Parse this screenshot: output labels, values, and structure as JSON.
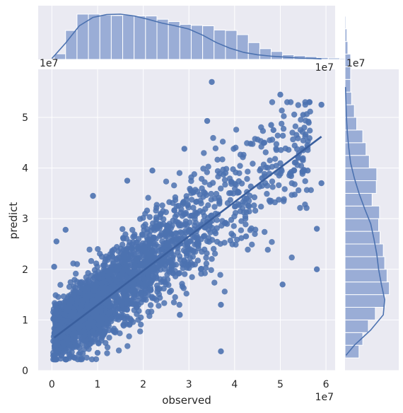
{
  "chart_data": {
    "type": "scatter",
    "subtype": "jointplot-regression",
    "xlabel": "observed",
    "ylabel": "predict",
    "x_offset_text": "1e7",
    "y_offset_text": "1e7",
    "marginal_x_offset_text": "1e7",
    "marginal_y_offset_text": "1e7",
    "xlim": [
      -0.3,
      6.2
    ],
    "ylim": [
      0,
      5.95
    ],
    "x_ticks": [
      0,
      1,
      2,
      3,
      4,
      5,
      6
    ],
    "x_tick_labels": [
      "0",
      "1",
      "2",
      "3",
      "4",
      "5",
      "6"
    ],
    "y_ticks": [
      0,
      1,
      2,
      3,
      4,
      5
    ],
    "y_tick_labels": [
      "0",
      "1",
      "2",
      "3",
      "4",
      "5"
    ],
    "grid": true,
    "colors": {
      "point": "#4c72b0",
      "background": "#eaeaf2",
      "grid": "#ffffff",
      "hist": "#4c72b0"
    },
    "regression_line": {
      "x": [
        0.05,
        5.9
      ],
      "y": [
        0.65,
        4.62
      ]
    },
    "points_sample": [
      {
        "x": 3.5,
        "y": 5.7
      },
      {
        "x": 5.0,
        "y": 5.45
      },
      {
        "x": 5.9,
        "y": 5.25
      },
      {
        "x": 3.4,
        "y": 4.93
      },
      {
        "x": 4.8,
        "y": 4.85
      },
      {
        "x": 5.5,
        "y": 5.05
      },
      {
        "x": 5.8,
        "y": 2.8
      },
      {
        "x": 5.9,
        "y": 3.7
      },
      {
        "x": 5.8,
        "y": 2.0
      },
      {
        "x": 5.05,
        "y": 1.7
      },
      {
        "x": 3.7,
        "y": 0.38
      },
      {
        "x": 0.05,
        "y": 2.05
      },
      {
        "x": 0.1,
        "y": 2.55
      },
      {
        "x": 0.3,
        "y": 2.78
      },
      {
        "x": 0.9,
        "y": 3.45
      },
      {
        "x": 1.65,
        "y": 3.75
      },
      {
        "x": 2.2,
        "y": 3.95
      },
      {
        "x": 2.9,
        "y": 4.38
      },
      {
        "x": 4.35,
        "y": 4.48
      },
      {
        "x": 4.85,
        "y": 4.75
      },
      {
        "x": 5.5,
        "y": 4.35
      },
      {
        "x": 5.6,
        "y": 3.95
      },
      {
        "x": 4.6,
        "y": 3.8
      },
      {
        "x": 4.25,
        "y": 2.65
      },
      {
        "x": 3.7,
        "y": 1.3
      },
      {
        "x": 2.8,
        "y": 1.1
      },
      {
        "x": 1.0,
        "y": 0.35
      },
      {
        "x": 0.05,
        "y": 0.3
      },
      {
        "x": 0.6,
        "y": 0.45
      },
      {
        "x": 0.3,
        "y": 1.25
      }
    ],
    "x_marginal_hist": {
      "bin_width": 0.25,
      "bin_start": 0.05,
      "counts": [
        0.12,
        0.62,
        0.97,
        0.97,
        0.95,
        0.94,
        0.95,
        0.93,
        0.93,
        0.86,
        0.81,
        0.75,
        0.73,
        0.72,
        0.63,
        0.62,
        0.53,
        0.36,
        0.23,
        0.17,
        0.1,
        0.08,
        0.06,
        0.04,
        0.03,
        0.02,
        0.01,
        0.01,
        0.01,
        0.005
      ],
      "kde_x": [
        0.0,
        0.3,
        0.6,
        0.9,
        1.2,
        1.5,
        1.8,
        2.1,
        2.4,
        2.7,
        3.0,
        3.3,
        3.6,
        3.9,
        4.2,
        4.5,
        4.8,
        5.1,
        5.4,
        5.7,
        5.9
      ],
      "kde_y": [
        0.02,
        0.35,
        0.72,
        0.9,
        0.96,
        0.97,
        0.93,
        0.86,
        0.78,
        0.72,
        0.65,
        0.52,
        0.36,
        0.24,
        0.15,
        0.1,
        0.07,
        0.05,
        0.03,
        0.02,
        0.01
      ]
    },
    "y_marginal_hist": {
      "bin_width": 0.25,
      "bin_start": 0.25,
      "counts": [
        0.3,
        0.38,
        0.5,
        0.65,
        0.85,
        0.95,
        0.9,
        0.85,
        0.82,
        0.75,
        0.72,
        0.74,
        0.58,
        0.67,
        0.68,
        0.52,
        0.45,
        0.38,
        0.25,
        0.2,
        0.14,
        0.12,
        0.12,
        0.12,
        0.06,
        0.04,
        0.02,
        0.01,
        0.005,
        0.005
      ],
      "kde_y": [
        0.3,
        0.5,
        0.8,
        1.1,
        1.4,
        1.7,
        2.0,
        2.3,
        2.6,
        2.9,
        3.2,
        3.5,
        3.8,
        4.1,
        4.4,
        4.7,
        5.0,
        5.3,
        5.6
      ],
      "kde_x": [
        0.02,
        0.2,
        0.55,
        0.82,
        0.85,
        0.78,
        0.72,
        0.68,
        0.62,
        0.55,
        0.42,
        0.3,
        0.2,
        0.12,
        0.08,
        0.05,
        0.03,
        0.02,
        0.01
      ]
    }
  }
}
